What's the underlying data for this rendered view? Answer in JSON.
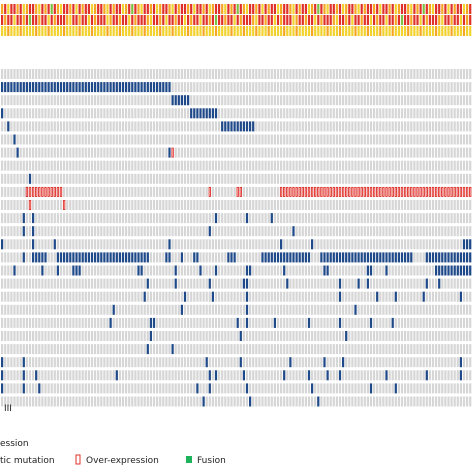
{
  "chart_data": {
    "type": "heatmap",
    "subtype": "oncoprint",
    "n_samples": 152,
    "n_genes": 26,
    "colors": {
      "background_cell": "#d6d6d6",
      "somatic_mutation": "#1f4a8a",
      "over_expression_outline": "#e0302a",
      "fusion": "#1db35a",
      "annot_red": "#e0302a",
      "annot_orange": "#f5a623",
      "annot_yellow": "#f2d22e",
      "annot_green": "#7cc242"
    },
    "annotation_tracks": [
      {
        "pattern": [
          "orange",
          "red",
          "yellow",
          "red",
          "red",
          "orange",
          "red",
          "yellow",
          "orange",
          "red",
          "red",
          "orange",
          "yellow",
          "red",
          "orange",
          "red",
          "green",
          "red",
          "orange",
          "yellow",
          "red",
          "red",
          "orange",
          "red",
          "yellow",
          "red",
          "orange",
          "red",
          "red",
          "yellow",
          "orange",
          "red",
          "red",
          "orange",
          "yellow",
          "red",
          "orange",
          "red",
          "red",
          "yellow",
          "orange",
          "red",
          "green",
          "red",
          "orange",
          "yellow",
          "red",
          "red",
          "orange",
          "red",
          "yellow",
          "orange",
          "red",
          "red",
          "orange",
          "yellow",
          "red",
          "orange",
          "red",
          "red"
        ]
      },
      {
        "pattern": [
          "red",
          "orange",
          "red",
          "red",
          "yellow",
          "red",
          "red",
          "orange",
          "red",
          "green",
          "red",
          "red",
          "orange",
          "red",
          "red",
          "yellow",
          "red",
          "orange",
          "red",
          "red",
          "red",
          "orange",
          "yellow",
          "red",
          "red",
          "orange",
          "red",
          "red",
          "yellow",
          "red",
          "orange",
          "red",
          "red",
          "red",
          "yellow",
          "orange",
          "red",
          "red",
          "orange",
          "red",
          "red",
          "yellow",
          "red",
          "orange",
          "red",
          "red",
          "red",
          "orange",
          "yellow",
          "red",
          "red",
          "orange",
          "red",
          "yellow",
          "red",
          "red",
          "orange",
          "red",
          "red",
          "yellow"
        ]
      },
      {
        "pattern": [
          "yellow",
          "yellow",
          "orange",
          "yellow",
          "yellow",
          "yellow",
          "orange",
          "yellow",
          "yellow",
          "yellow",
          "yellow",
          "orange",
          "yellow",
          "yellow",
          "yellow",
          "orange",
          "yellow",
          "yellow",
          "yellow",
          "yellow",
          "orange",
          "yellow",
          "yellow",
          "yellow",
          "yellow",
          "orange",
          "yellow",
          "yellow",
          "yellow",
          "orange",
          "yellow",
          "yellow",
          "yellow",
          "yellow",
          "orange",
          "yellow",
          "yellow",
          "yellow",
          "orange",
          "yellow"
        ]
      }
    ],
    "mutation_runs": [
      [],
      [
        [
          0,
          55
        ]
      ],
      [
        [
          55,
          61
        ]
      ],
      [
        [
          0,
          1
        ],
        [
          61,
          70
        ]
      ],
      [
        [
          2,
          3
        ],
        [
          71,
          82
        ]
      ],
      [
        [
          4,
          5
        ]
      ],
      [
        [
          5,
          6
        ],
        [
          54,
          55
        ]
      ],
      [],
      [
        [
          9,
          10
        ]
      ],
      [
        [
          8,
          9
        ]
      ],
      [],
      [
        [
          7,
          8
        ],
        [
          10,
          11
        ],
        [
          69,
          70
        ],
        [
          79,
          80
        ],
        [
          87,
          88
        ]
      ],
      [
        [
          7,
          8
        ],
        [
          10,
          11
        ],
        [
          67,
          68
        ],
        [
          94,
          95
        ]
      ],
      [
        [
          0,
          1
        ],
        [
          10,
          11
        ],
        [
          17,
          18
        ],
        [
          54,
          55
        ],
        [
          90,
          91
        ],
        [
          100,
          101
        ],
        [
          149,
          152
        ]
      ],
      [
        [
          7,
          8
        ],
        [
          10,
          15
        ],
        [
          18,
          48
        ],
        [
          53,
          55
        ],
        [
          58,
          59
        ],
        [
          62,
          64
        ],
        [
          73,
          76
        ],
        [
          84,
          100
        ],
        [
          103,
          133
        ],
        [
          137,
          152
        ]
      ],
      [
        [
          4,
          5
        ],
        [
          13,
          14
        ],
        [
          18,
          19
        ],
        [
          23,
          26
        ],
        [
          44,
          46
        ],
        [
          56,
          57
        ],
        [
          64,
          65
        ],
        [
          69,
          70
        ],
        [
          79,
          81
        ],
        [
          91,
          92
        ],
        [
          104,
          106
        ],
        [
          118,
          120
        ],
        [
          124,
          125
        ],
        [
          140,
          152
        ]
      ],
      [
        [
          47,
          48
        ],
        [
          56,
          57
        ],
        [
          67,
          68
        ],
        [
          78,
          80
        ],
        [
          92,
          93
        ],
        [
          109,
          110
        ],
        [
          115,
          116
        ],
        [
          118,
          119
        ],
        [
          137,
          138
        ],
        [
          141,
          142
        ]
      ],
      [
        [
          46,
          47
        ],
        [
          59,
          60
        ],
        [
          68,
          69
        ],
        [
          79,
          80
        ],
        [
          109,
          110
        ],
        [
          121,
          122
        ],
        [
          127,
          128
        ],
        [
          136,
          137
        ],
        [
          148,
          149
        ]
      ],
      [
        [
          36,
          37
        ],
        [
          58,
          59
        ],
        [
          79,
          80
        ],
        [
          114,
          115
        ]
      ],
      [
        [
          35,
          36
        ],
        [
          48,
          50
        ],
        [
          76,
          77
        ],
        [
          79,
          80
        ],
        [
          88,
          89
        ],
        [
          99,
          100
        ],
        [
          109,
          110
        ],
        [
          119,
          120
        ],
        [
          126,
          127
        ]
      ],
      [
        [
          48,
          49
        ],
        [
          77,
          78
        ],
        [
          111,
          112
        ]
      ],
      [
        [
          47,
          48
        ],
        [
          55,
          56
        ]
      ],
      [
        [
          0,
          1
        ],
        [
          7,
          8
        ],
        [
          66,
          67
        ],
        [
          77,
          78
        ],
        [
          93,
          94
        ],
        [
          104,
          105
        ],
        [
          110,
          111
        ],
        [
          148,
          149
        ]
      ],
      [
        [
          0,
          1
        ],
        [
          7,
          8
        ],
        [
          11,
          12
        ],
        [
          37,
          38
        ],
        [
          67,
          68
        ],
        [
          69,
          70
        ],
        [
          78,
          79
        ],
        [
          91,
          92
        ],
        [
          99,
          100
        ],
        [
          105,
          106
        ],
        [
          109,
          110
        ],
        [
          124,
          125
        ],
        [
          137,
          138
        ],
        [
          148,
          149
        ]
      ],
      [
        [
          0,
          1
        ],
        [
          7,
          8
        ],
        [
          12,
          13
        ],
        [
          63,
          64
        ],
        [
          67,
          68
        ],
        [
          79,
          80
        ],
        [
          100,
          101
        ],
        [
          119,
          120
        ],
        [
          127,
          128
        ]
      ],
      [
        [
          65,
          66
        ],
        [
          80,
          81
        ],
        [
          102,
          103
        ]
      ]
    ],
    "overexpression_cells": [
      [
        6,
        55
      ],
      [
        9,
        8
      ],
      [
        9,
        9
      ],
      [
        9,
        10
      ],
      [
        9,
        11
      ],
      [
        9,
        12
      ],
      [
        9,
        13
      ],
      [
        9,
        14
      ],
      [
        9,
        15
      ],
      [
        9,
        16
      ],
      [
        9,
        17
      ],
      [
        9,
        18
      ],
      [
        9,
        19
      ],
      [
        9,
        67
      ],
      [
        9,
        76
      ],
      [
        9,
        77
      ],
      [
        9,
        90
      ],
      [
        9,
        91
      ],
      [
        9,
        92
      ],
      [
        9,
        93
      ],
      [
        9,
        94
      ],
      [
        9,
        95
      ],
      [
        9,
        96
      ],
      [
        9,
        97
      ],
      [
        9,
        98
      ],
      [
        9,
        99
      ],
      [
        9,
        100
      ],
      [
        9,
        101
      ],
      [
        9,
        102
      ],
      [
        9,
        103
      ],
      [
        9,
        104
      ],
      [
        9,
        105
      ],
      [
        9,
        106
      ],
      [
        9,
        107
      ],
      [
        9,
        108
      ],
      [
        9,
        109
      ],
      [
        9,
        110
      ],
      [
        9,
        111
      ],
      [
        9,
        112
      ],
      [
        9,
        113
      ],
      [
        9,
        114
      ],
      [
        9,
        115
      ],
      [
        9,
        116
      ],
      [
        9,
        117
      ],
      [
        9,
        118
      ],
      [
        9,
        119
      ],
      [
        9,
        120
      ],
      [
        9,
        121
      ],
      [
        9,
        122
      ],
      [
        9,
        123
      ],
      [
        9,
        124
      ],
      [
        9,
        125
      ],
      [
        9,
        126
      ],
      [
        9,
        127
      ],
      [
        9,
        128
      ],
      [
        9,
        129
      ],
      [
        9,
        130
      ],
      [
        9,
        131
      ],
      [
        9,
        132
      ],
      [
        9,
        133
      ],
      [
        9,
        134
      ],
      [
        9,
        135
      ],
      [
        9,
        136
      ],
      [
        9,
        137
      ],
      [
        9,
        138
      ],
      [
        9,
        139
      ],
      [
        9,
        140
      ],
      [
        9,
        141
      ],
      [
        9,
        142
      ],
      [
        9,
        143
      ],
      [
        9,
        144
      ],
      [
        9,
        145
      ],
      [
        9,
        146
      ],
      [
        9,
        147
      ],
      [
        9,
        148
      ],
      [
        9,
        149
      ],
      [
        9,
        150
      ],
      [
        9,
        151
      ],
      [
        10,
        9
      ],
      [
        10,
        20
      ]
    ],
    "legend": {
      "partial_label": "III",
      "items": [
        {
          "label": "ession",
          "kind": "text-fragment"
        },
        {
          "label": "tic mutation",
          "kind": "text-fragment"
        },
        {
          "label": "Over-expression",
          "kind": "outline-swatch"
        },
        {
          "label": "Fusion",
          "kind": "green-swatch"
        }
      ]
    }
  }
}
